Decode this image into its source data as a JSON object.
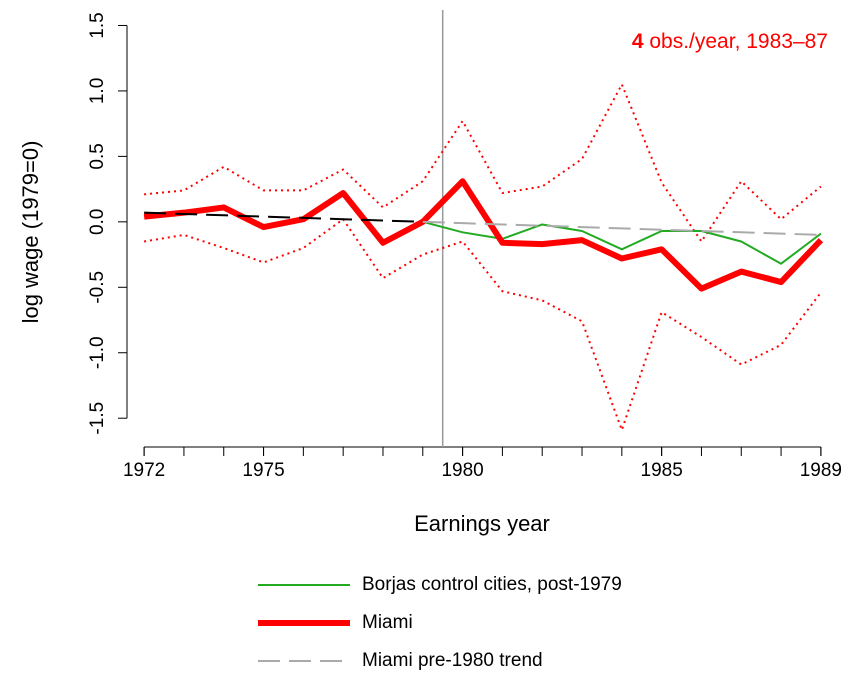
{
  "chart_data": {
    "type": "line",
    "annotation_bold": "4",
    "annotation": "obs./year, 1983–87",
    "annotation_color": "#ff0000",
    "xlabel": "Earnings year",
    "ylabel": "log wage (1979=0)",
    "x": [
      1972,
      1973,
      1974,
      1975,
      1976,
      1977,
      1978,
      1979,
      1980,
      1981,
      1982,
      1983,
      1984,
      1985,
      1986,
      1987,
      1988,
      1989
    ],
    "xlim": [
      1971.57,
      1989.43
    ],
    "xticks": [
      1972,
      1975,
      1980,
      1985,
      1989
    ],
    "ylim": [
      -1.72,
      1.58
    ],
    "yticks": [
      {
        "value": -1.5,
        "label": "-1.5"
      },
      {
        "value": -1.0,
        "label": "-1.0"
      },
      -0.5,
      {
        "value": 0,
        "label": "0.0"
      },
      0.5,
      {
        "value": 1.0,
        "label": "1.0"
      },
      1.5
    ],
    "vline": 1979.5,
    "vline_color": "#999999",
    "series": [
      {
        "name": "Borjas control cities, post-1979",
        "color": "#22aa22",
        "width": 2,
        "values": [
          null,
          null,
          null,
          null,
          null,
          null,
          null,
          0.0,
          -0.08,
          -0.13,
          -0.02,
          -0.07,
          -0.21,
          -0.07,
          -0.07,
          -0.15,
          -0.32,
          -0.09
        ]
      },
      {
        "name": "Miami",
        "color": "#ff0000",
        "width": 6,
        "values": [
          0.04,
          0.07,
          0.11,
          -0.04,
          0.02,
          0.22,
          -0.16,
          0.0,
          0.31,
          -0.16,
          -0.17,
          -0.14,
          -0.28,
          -0.21,
          -0.51,
          -0.38,
          -0.46,
          -0.14
        ],
        "ci_upper": [
          0.21,
          0.24,
          0.42,
          0.24,
          0.24,
          0.4,
          0.11,
          0.31,
          0.77,
          0.22,
          0.27,
          0.48,
          1.05,
          0.3,
          -0.15,
          0.31,
          0.02,
          0.27
        ],
        "ci_lower": [
          -0.15,
          -0.1,
          -0.2,
          -0.31,
          -0.2,
          0.02,
          -0.43,
          -0.25,
          -0.15,
          -0.53,
          -0.6,
          -0.76,
          -1.59,
          -0.69,
          -0.88,
          -1.09,
          -0.94,
          -0.54
        ]
      },
      {
        "name": "Miami pre-1980 trend",
        "color": "#aaaaaa",
        "pre_color": "#000000",
        "dashed": true,
        "width": 2,
        "values": [
          0.07,
          0.06,
          0.05,
          0.04,
          0.03,
          0.02,
          0.01,
          0.0,
          -0.01,
          -0.02,
          -0.03,
          -0.04,
          -0.05,
          -0.06,
          -0.07,
          -0.08,
          -0.09,
          -0.1
        ]
      }
    ]
  }
}
